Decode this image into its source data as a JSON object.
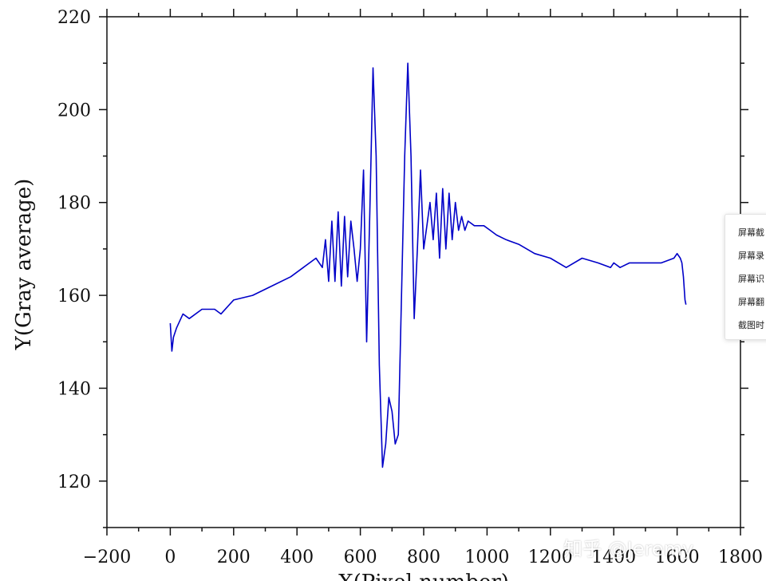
{
  "chart_data": {
    "type": "line",
    "title": "",
    "xlabel": "X(Pixel number)",
    "ylabel": "Y(Gray average)",
    "xlim": [
      -200,
      1800
    ],
    "ylim": [
      110,
      220
    ],
    "x_ticks": [
      -200,
      0,
      200,
      400,
      600,
      800,
      1000,
      1200,
      1400,
      1600,
      1800
    ],
    "x_tick_labels": [
      "−200",
      "0",
      "200",
      "400",
      "600",
      "800",
      "1000",
      "1200",
      "1400",
      "1600",
      "1800"
    ],
    "y_ticks": [
      120,
      140,
      160,
      180,
      200,
      220
    ],
    "y_tick_labels": [
      "120",
      "140",
      "160",
      "180",
      "200",
      "220"
    ],
    "grid": false,
    "line_color": "#0000c8",
    "series": [
      {
        "x": [
          0,
          5,
          10,
          20,
          40,
          60,
          100,
          140,
          160,
          200,
          260,
          320,
          380,
          420,
          460,
          480,
          490,
          500,
          510,
          520,
          530,
          540,
          550,
          560,
          570,
          580,
          590,
          600,
          610,
          620,
          630,
          640,
          650,
          660,
          670,
          680,
          690,
          700,
          710,
          720,
          730,
          740,
          750,
          760,
          770,
          780,
          790,
          800,
          810,
          820,
          830,
          840,
          850,
          860,
          870,
          880,
          890,
          900,
          910,
          920,
          930,
          940,
          960,
          990,
          1010,
          1030,
          1060,
          1100,
          1150,
          1200,
          1250,
          1300,
          1350,
          1390,
          1400,
          1420,
          1450,
          1500,
          1550,
          1590,
          1600,
          1610,
          1615,
          1620,
          1625,
          1628
        ],
        "y": [
          154,
          148,
          151,
          153,
          156,
          155,
          157,
          157,
          156,
          159,
          160,
          162,
          164,
          166,
          168,
          166,
          172,
          163,
          176,
          163,
          178,
          162,
          177,
          164,
          176,
          170,
          163,
          170,
          187,
          150,
          178,
          209,
          190,
          145,
          123,
          128,
          138,
          135,
          128,
          130,
          160,
          190,
          210,
          190,
          155,
          170,
          187,
          170,
          175,
          180,
          172,
          182,
          168,
          183,
          170,
          182,
          172,
          180,
          174,
          177,
          174,
          176,
          175,
          175,
          174,
          173,
          172,
          171,
          169,
          168,
          166,
          168,
          167,
          166,
          167,
          166,
          167,
          167,
          167,
          168,
          169,
          168,
          167,
          164,
          159,
          158
        ]
      }
    ]
  },
  "context_menu": {
    "items": [
      "屏幕截",
      "屏幕录",
      "屏幕识",
      "屏幕翻",
      "截图时"
    ]
  },
  "watermark": "知乎 @Jeremy"
}
